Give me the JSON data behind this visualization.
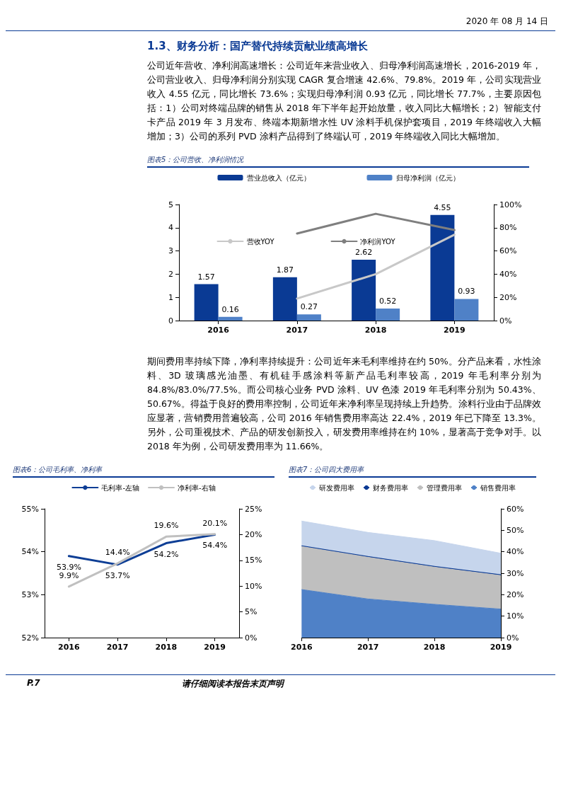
{
  "chart_data": [
    {
      "type": "bar",
      "title": "图表5：公司营收、净利润情况",
      "annotations": [
        "2020 年 08 月 14 日",
        "1.3、财务分析：国产替代持续贡献业绩高增长",
        "公司近年营收、净利润高速增长：公司近年来营业收入、归母净利润高速增长，2016-2019 年，公司营业收入、归母净利润分别实现 CAGR 复合增速 42.6%、79.8%。2019 年，公司实现营业收入 4.55 亿元，同比增长 73.6%；实现归母净利润 0.93 亿元，同比增长 77.7%，主要原因包括：1）公司对终端品牌的销售从 2018 年下半年起开始放量，收入同比大幅增长；2）智能支付卡产品 2019 年 3 月发布、终端本期新增水性 UV 涂料手机保护套项目，2019 年终端收入大幅增加；3）公司的系列 PVD 涂料产品得到了终端认可，2019 年终端收入同比大幅增加。"
      ],
      "categories": [
        "2016",
        "2017",
        "2018",
        "2019"
      ],
      "series": [
        {
          "name": "营业总收入（亿元）",
          "color": "#0a3a94",
          "values": [
            1.57,
            1.87,
            2.62,
            4.55
          ],
          "value_labels": [
            "1.57",
            "1.87",
            "2.62",
            "4.55"
          ]
        },
        {
          "name": "归母净利润（亿元）",
          "color": "#4f81c7",
          "values": [
            0.16,
            0.27,
            0.52,
            0.93
          ],
          "value_labels": [
            "0.16",
            "0.27",
            "0.52",
            "0.93"
          ]
        },
        {
          "name": "营收YOY",
          "type": "line",
          "axis": "y2",
          "color": "#c8c8c8",
          "values": [
            null,
            19,
            40,
            74
          ]
        },
        {
          "name": "净利润YOY",
          "type": "line",
          "axis": "y2",
          "color": "#7f7f7f",
          "values": [
            null,
            75,
            92,
            78
          ]
        }
      ],
      "ylim": [
        0,
        5
      ],
      "yticks": [
        0,
        1,
        2,
        3,
        4,
        5
      ],
      "y2lim": [
        0,
        100
      ],
      "y2ticks": [
        {
          "value": 0,
          "label": "0%"
        },
        {
          "value": 20,
          "label": "20%"
        },
        {
          "value": 40,
          "label": "40%"
        },
        {
          "value": 60,
          "label": "60%"
        },
        {
          "value": 80,
          "label": "80%"
        },
        {
          "value": 100,
          "label": "100%"
        }
      ],
      "legend": "top",
      "marker": "none",
      "line_style": "solid",
      "grid": false
    },
    {
      "type": "line",
      "title": "图表6：公司毛利率、净利率",
      "annotations": [
        "期间费用率持续下降，净利率持续提升：公司近年来毛利率维持在约 50%。分产品来看，水性涂料、3D 玻璃感光油墨、有机硅手感涂料等新产品毛利率较高，2019 年毛利率分别为 84.8%/83.0%/77.5%。而公司核心业务 PVD 涂料、UV 色漆 2019 年毛利率分别为 50.43%、50.67%。得益于良好的费用率控制，公司近年来净利率呈现持续上升趋势。涂料行业由于品牌效应显著，营销费用普遍较高，公司 2016 年销售费用率高达 22.4%，2019 年已下降至 13.3%。另外，公司重视技术、产品的研发创新投入，研发费用率维持在约 10%，显著高于竞争对手。以 2018 年为例，公司研发费用率为 11.66%。"
      ],
      "categories": [
        "2016",
        "2017",
        "2018",
        "2019"
      ],
      "series": [
        {
          "name": "毛利率-左轴",
          "color": "#0e3e95",
          "values": [
            53.9,
            53.7,
            54.2,
            54.4
          ],
          "value_labels": [
            "53.9%",
            "53.7%",
            "54.2%",
            "54.4%"
          ]
        },
        {
          "name": "净利率-右轴",
          "axis": "y2",
          "color": "#c0c0c0",
          "values": [
            9.9,
            14.4,
            19.6,
            20.1
          ],
          "value_labels": [
            "9.9%",
            "14.4%",
            "19.6%",
            "20.1%"
          ]
        }
      ],
      "ylim": [
        52,
        55
      ],
      "yticks": [
        {
          "value": 52,
          "label": "52%"
        },
        {
          "value": 53,
          "label": "53%"
        },
        {
          "value": 54,
          "label": "54%"
        },
        {
          "value": 55,
          "label": "55%"
        }
      ],
      "y2lim": [
        0,
        25
      ],
      "y2ticks": [
        {
          "value": 0,
          "label": "0%"
        },
        {
          "value": 5,
          "label": "5%"
        },
        {
          "value": 10,
          "label": "10%"
        },
        {
          "value": 15,
          "label": "15%"
        },
        {
          "value": 20,
          "label": "20%"
        },
        {
          "value": 25,
          "label": "25%"
        }
      ],
      "legend": "top",
      "marker": "none",
      "line_style": "solid",
      "grid": false
    },
    {
      "type": "area",
      "title": "图表7：公司四大费用率",
      "annotations": [
        "P.7",
        "请仔细阅读本报告末页声明"
      ],
      "categories": [
        "2016",
        "2017",
        "2018",
        "2019"
      ],
      "stacked": true,
      "series": [
        {
          "name": "销售费用率",
          "axis": "y2",
          "color": "#4f81c7",
          "values": [
            22.4,
            18,
            15.5,
            13.3
          ]
        },
        {
          "name": "管理费用率",
          "axis": "y2",
          "color": "#bfbfbf",
          "values": [
            20.1,
            19.5,
            17.4,
            15.7
          ]
        },
        {
          "name": "财务费用率",
          "axis": "y2",
          "color": "#0a3a94",
          "values": [
            0.3,
            0.3,
            0.3,
            0.3
          ]
        },
        {
          "name": "研发费用率",
          "axis": "y2",
          "color": "#c6d5ec",
          "values": [
            11.5,
            11.2,
            12,
            10
          ]
        }
      ],
      "y2lim": [
        0,
        60
      ],
      "y2ticks": [
        {
          "value": 0,
          "label": "0%"
        },
        {
          "value": 10,
          "label": "10%"
        },
        {
          "value": 20,
          "label": "20%"
        },
        {
          "value": 30,
          "label": "30%"
        },
        {
          "value": 40,
          "label": "40%"
        },
        {
          "value": 50,
          "label": "50%"
        },
        {
          "value": 60,
          "label": "60%"
        }
      ],
      "legend": "top",
      "marker": "none",
      "grid": false
    }
  ]
}
